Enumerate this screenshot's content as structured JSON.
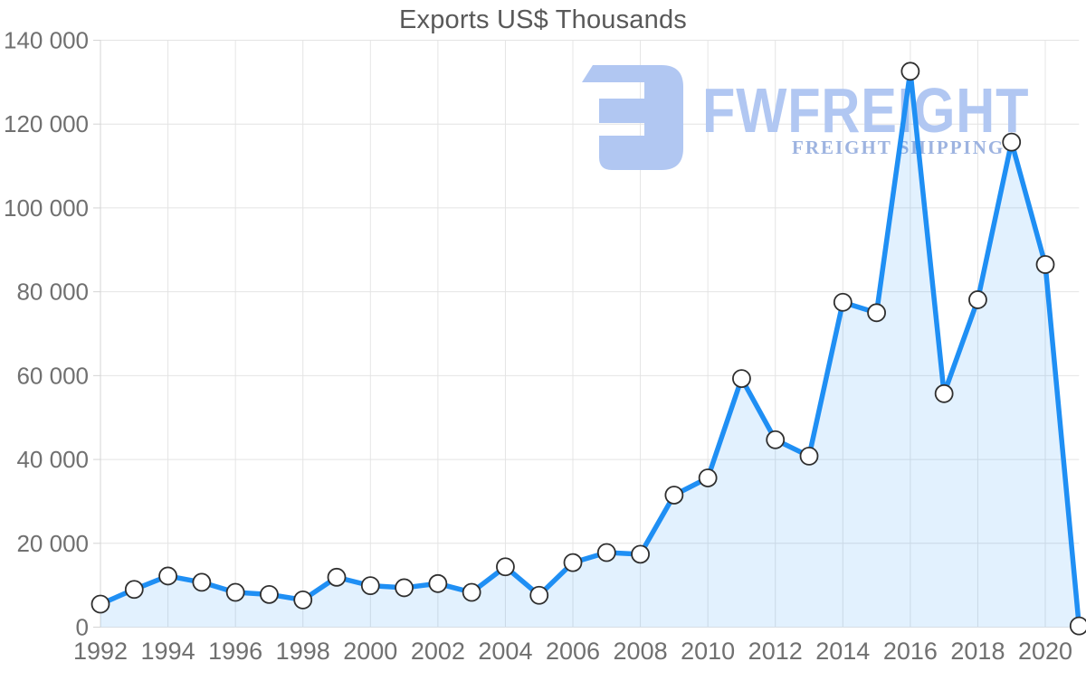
{
  "title": "Exports US$ Thousands",
  "watermark": {
    "brand": "FWFREIGHT",
    "tagline": "FREIGHT SHIPPING"
  },
  "colors": {
    "line": "#1f8ff4",
    "area_fill": "rgba(31,143,244,0.13)",
    "grid": "#e4e4e4",
    "axis": "#d4d4d4",
    "tick_label": "#707070",
    "title": "#595959",
    "marker_fill": "#ffffff",
    "marker_stroke": "#2f2f2f",
    "watermark_primary": "#b1c7f2",
    "watermark_secondary": "#9db3e0"
  },
  "chart_data": {
    "type": "area",
    "title": "Exports US$ Thousands",
    "x": [
      1992,
      1993,
      1994,
      1995,
      1996,
      1997,
      1998,
      1999,
      2000,
      2001,
      2002,
      2003,
      2004,
      2005,
      2006,
      2007,
      2008,
      2009,
      2010,
      2011,
      2012,
      2013,
      2014,
      2015,
      2016,
      2017,
      2018,
      2019,
      2020,
      2021
    ],
    "values": [
      5500,
      9000,
      12200,
      10700,
      8300,
      7800,
      6500,
      11900,
      9900,
      9400,
      10400,
      8300,
      14400,
      7600,
      15400,
      17800,
      17400,
      31500,
      35600,
      59300,
      44700,
      40800,
      77500,
      75000,
      132600,
      55700,
      78100,
      115700,
      86500,
      300
    ],
    "xlabel": "",
    "ylabel": "",
    "ylim": [
      0,
      140000
    ],
    "yticks": [
      0,
      20000,
      40000,
      60000,
      80000,
      100000,
      120000,
      140000
    ],
    "ytick_labels": [
      "0",
      "20 000",
      "40 000",
      "60 000",
      "80 000",
      "100 000",
      "120 000",
      "140 000"
    ],
    "xticks": [
      1992,
      1994,
      1996,
      1998,
      2000,
      2002,
      2004,
      2006,
      2008,
      2010,
      2012,
      2014,
      2016,
      2018,
      2020
    ],
    "xtick_labels": [
      "1992",
      "1994",
      "1996",
      "1998",
      "2000",
      "2002",
      "2004",
      "2006",
      "2008",
      "2010",
      "2012",
      "2014",
      "2016",
      "2018",
      "2020"
    ],
    "grid": true,
    "legend": "none",
    "marker": "circle"
  }
}
